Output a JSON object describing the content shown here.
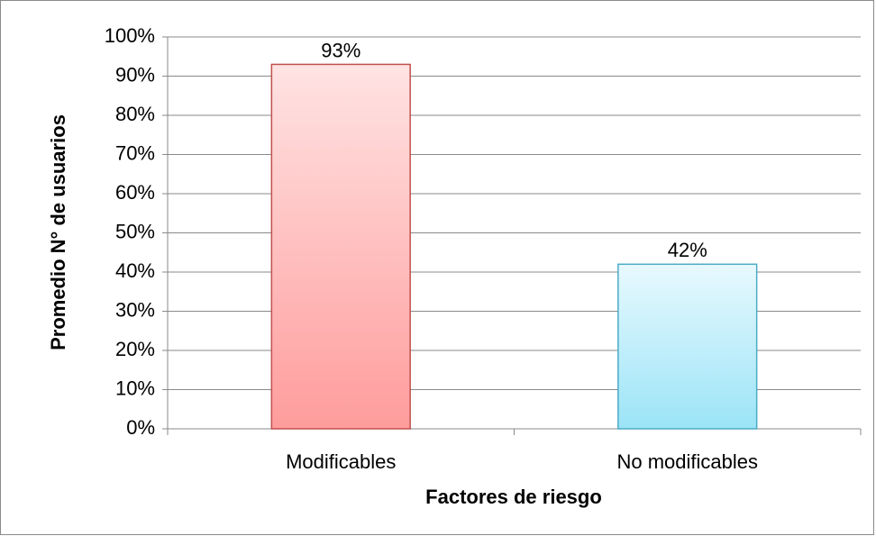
{
  "chart_data": {
    "type": "bar",
    "ylabel": "Promedio N° de usuarios",
    "xlabel": "Factores de riesgo",
    "categories": [
      "Modificables",
      "No modificables"
    ],
    "values": [
      93,
      42
    ],
    "value_labels": [
      "93%",
      "42%"
    ],
    "colors": [
      "#ffa3a3",
      "#a3e6f8"
    ],
    "ylim": [
      0,
      100
    ],
    "yticks": [
      {
        "value": 0,
        "label": "0%"
      },
      {
        "value": 10,
        "label": "10%"
      },
      {
        "value": 20,
        "label": "20%"
      },
      {
        "value": 30,
        "label": "30%"
      },
      {
        "value": 40,
        "label": "40%"
      },
      {
        "value": 50,
        "label": "50%"
      },
      {
        "value": 60,
        "label": "60%"
      },
      {
        "value": 70,
        "label": "70%"
      },
      {
        "value": 80,
        "label": "80%"
      },
      {
        "value": 90,
        "label": "90%"
      },
      {
        "value": 100,
        "label": "100%"
      }
    ],
    "grid": true
  }
}
